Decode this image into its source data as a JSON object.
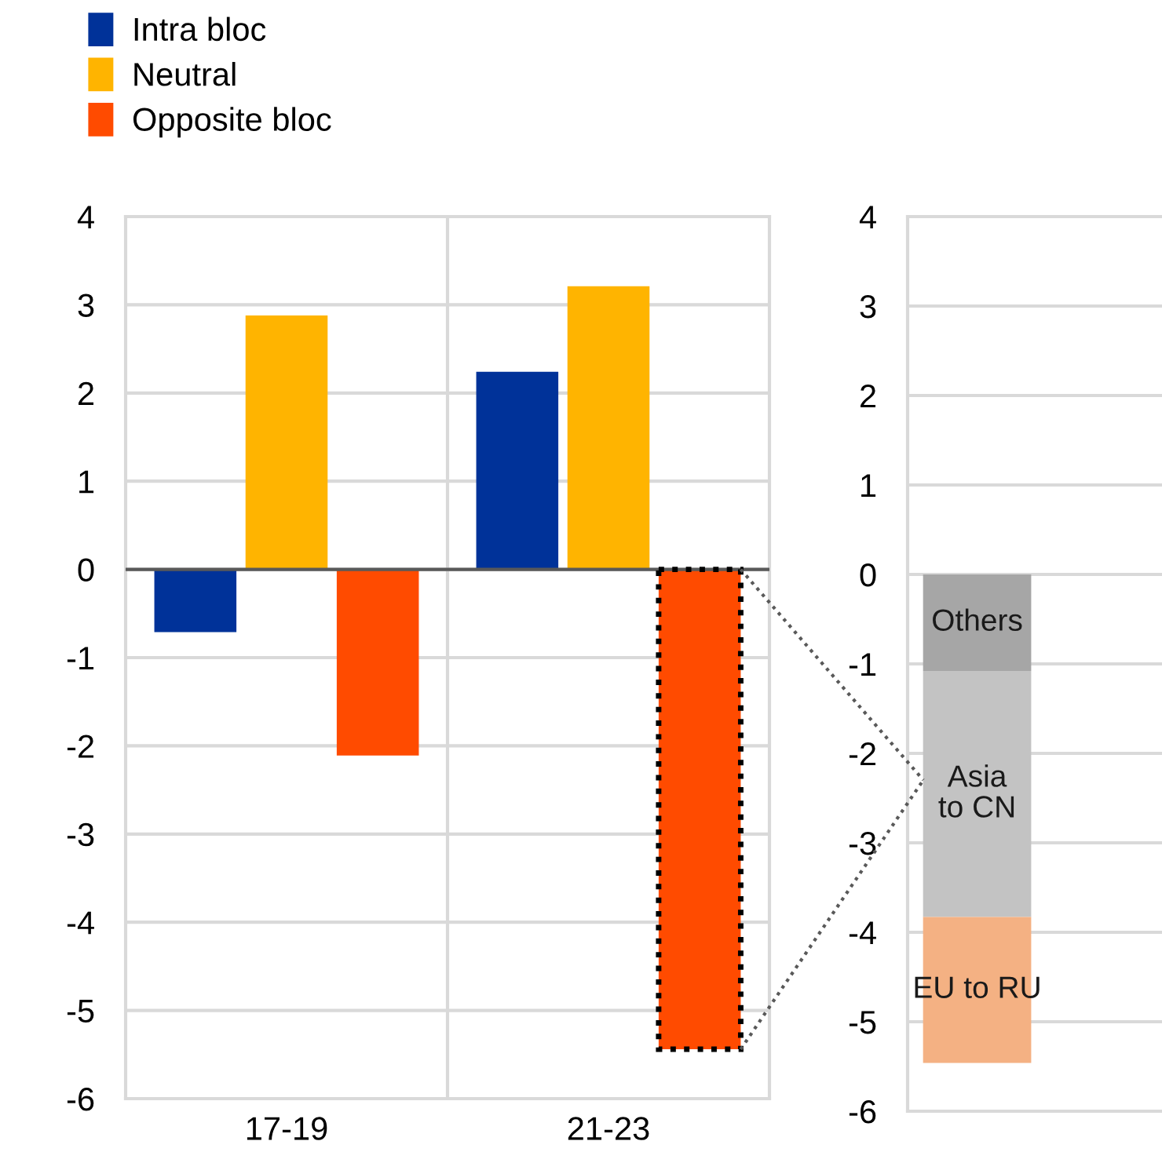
{
  "chart_data": [
    {
      "type": "bar",
      "categories": [
        "17-19",
        "21-23"
      ],
      "series": [
        {
          "name": "Intra bloc",
          "color": "#003299",
          "values": [
            -0.71,
            2.24
          ]
        },
        {
          "name": "Neutral",
          "color": "#ffb400",
          "values": [
            2.88,
            3.21
          ]
        },
        {
          "name": "Opposite bloc",
          "color": "#ff4b00",
          "values": [
            -2.11,
            -5.44
          ]
        }
      ],
      "ylim": [
        -6,
        4
      ],
      "yticks": [
        -6,
        -5,
        -4,
        -3,
        -2,
        -1,
        0,
        1,
        2,
        3,
        4
      ],
      "grid": true,
      "legend": "top left"
    },
    {
      "type": "bar",
      "stacked": true,
      "categories": [
        null
      ],
      "series": [
        {
          "name": "Others",
          "color": "#a6a6a6",
          "values": [
            -1.08
          ]
        },
        {
          "name": "Asia\nto CN",
          "color": "#c3c3c3",
          "values": [
            -2.75
          ]
        },
        {
          "name": "EU to RU",
          "color": "#f4b183",
          "values": [
            -1.63
          ]
        }
      ],
      "ylim": [
        -6,
        4
      ],
      "yticks": [
        -6,
        -5,
        -4,
        -3,
        -2,
        -1,
        0,
        1,
        2,
        3,
        4
      ],
      "grid": true,
      "tick_labels": "y"
    }
  ]
}
